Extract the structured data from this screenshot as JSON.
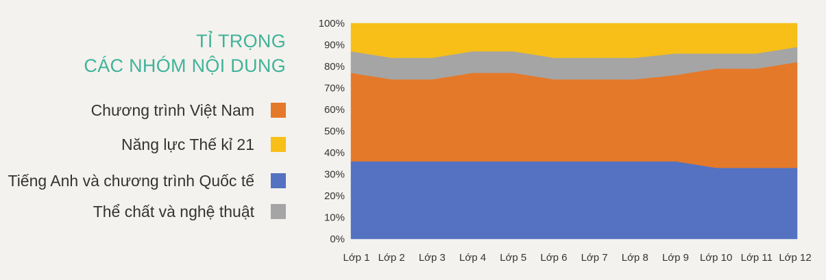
{
  "title_lines": [
    "TỈ TRỌNG",
    "CÁC NHÓM NỘI DUNG"
  ],
  "colors": {
    "title": "#3fb39a",
    "vietnam": "#e5792a",
    "century21": "#f7bf17",
    "english": "#5472c1",
    "arts": "#a5a5a5"
  },
  "legend": [
    {
      "label": "Chương trình Việt Nam",
      "color": "#e5792a"
    },
    {
      "label": "Năng lực Thế kỉ 21",
      "color": "#f7bf17"
    },
    {
      "label": "Tiếng Anh và chương trình Quốc tế",
      "color": "#5472c1"
    },
    {
      "label": "Thể chất và nghệ thuật",
      "color": "#a5a5a5"
    }
  ],
  "chart_data": {
    "type": "area",
    "stacked": true,
    "percent": true,
    "categories": [
      "Lớp 1",
      "Lớp 2",
      "Lớp 3",
      "Lớp 4",
      "Lớp 5",
      "Lớp 6",
      "Lớp 7",
      "Lớp 8",
      "Lớp 9",
      "Lớp 10",
      "Lớp 11",
      "Lớp 12"
    ],
    "y_ticks": [
      "0%",
      "10%",
      "20%",
      "30%",
      "40%",
      "50%",
      "60%",
      "70%",
      "80%",
      "90%",
      "100%"
    ],
    "ylim": [
      0,
      100
    ],
    "grid": false,
    "series": [
      {
        "name": "Tiếng Anh và chương trình Quốc tế",
        "color": "#5472c1",
        "values": [
          36,
          36,
          36,
          36,
          36,
          36,
          36,
          36,
          36,
          33,
          33,
          33
        ]
      },
      {
        "name": "Chương trình Việt Nam",
        "color": "#e5792a",
        "values": [
          41,
          38,
          38,
          41,
          41,
          38,
          38,
          38,
          40,
          46,
          46,
          49
        ]
      },
      {
        "name": "Thể chất và nghệ thuật",
        "color": "#a5a5a5",
        "values": [
          10,
          10,
          10,
          10,
          10,
          10,
          10,
          10,
          10,
          7,
          7,
          7
        ]
      },
      {
        "name": "Năng lực Thế kỉ 21",
        "color": "#f7bf17",
        "values": [
          13,
          16,
          16,
          13,
          13,
          16,
          16,
          16,
          14,
          14,
          14,
          11
        ]
      }
    ]
  }
}
